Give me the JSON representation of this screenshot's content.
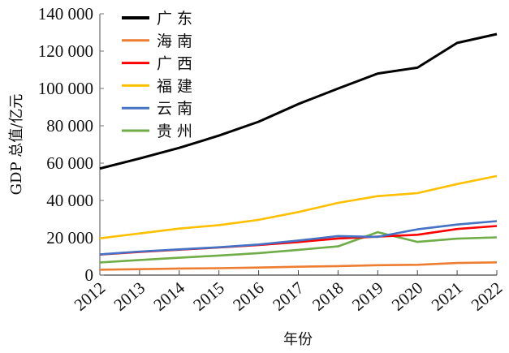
{
  "chart_data": {
    "type": "line",
    "title": "",
    "xlabel": "年份",
    "ylabel": "GDP 总值/亿元",
    "x": [
      "2012",
      "2013",
      "2014",
      "2015",
      "2016",
      "2017",
      "2018",
      "2019",
      "2020",
      "2021",
      "2022"
    ],
    "ylim": [
      0,
      140000
    ],
    "yticks": [
      0,
      20000,
      40000,
      60000,
      80000,
      100000,
      120000,
      140000
    ],
    "ytick_labels": [
      "0",
      "20 000",
      "40 000",
      "60 000",
      "80 000",
      "100 000",
      "120 000",
      "140 000"
    ],
    "grid": false,
    "legend_position": "top-left",
    "series": [
      {
        "name": "广东",
        "color": "#000000",
        "values": [
          57068,
          62474,
          68173,
          74732,
          82163,
          91649,
          99945,
          107987,
          111152,
          124370,
          129119
        ]
      },
      {
        "name": "海南",
        "color": "#ED7D31",
        "values": [
          2856,
          3178,
          3501,
          3703,
          4053,
          4462,
          4832,
          5309,
          5532,
          6475,
          6818
        ]
      },
      {
        "name": "广西",
        "color": "#FF0000",
        "values": [
          11000,
          12400,
          13600,
          14800,
          16100,
          17700,
          19600,
          20600,
          21600,
          24700,
          26300
        ]
      },
      {
        "name": "福建",
        "color": "#FFC000",
        "values": [
          19700,
          22300,
          24900,
          26800,
          29600,
          33800,
          38700,
          42300,
          43900,
          48800,
          53100
        ]
      },
      {
        "name": "云南",
        "color": "#4472C4",
        "values": [
          11100,
          12600,
          13800,
          14900,
          16400,
          18500,
          20900,
          20500,
          24500,
          27100,
          28900
        ]
      },
      {
        "name": "贵州",
        "color": "#70AD47",
        "values": [
          6800,
          8100,
          9300,
          10500,
          11800,
          13500,
          15400,
          23000,
          17800,
          19500,
          20200
        ]
      }
    ]
  }
}
